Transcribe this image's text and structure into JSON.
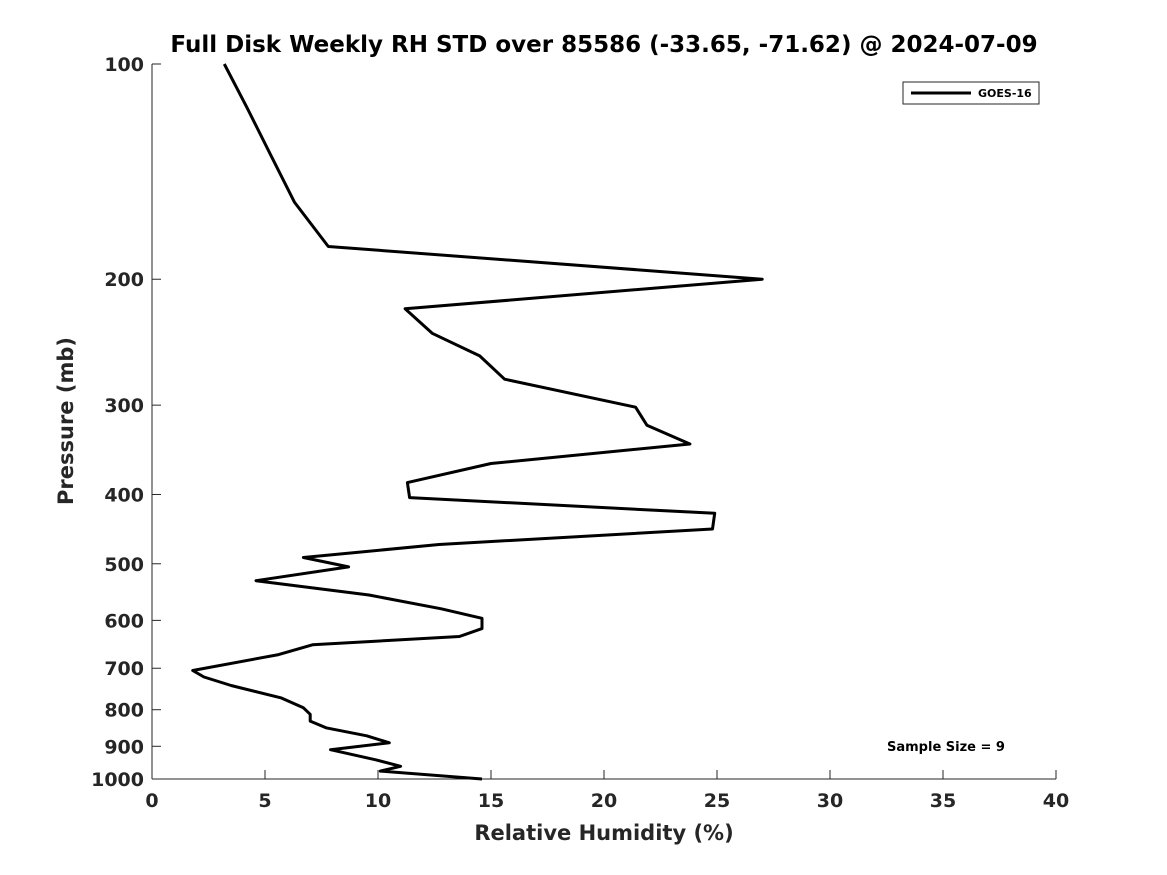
{
  "chart_data": {
    "type": "line",
    "title": "Full Disk Weekly RH STD over 85586 (-33.65, -71.62) @ 2024-07-09",
    "xlabel": "Relative Humidity (%)",
    "ylabel": "Pressure (mb)",
    "xlim": [
      0,
      40
    ],
    "ylim": [
      100,
      1000
    ],
    "yscale": "log",
    "yreversed": true,
    "grid": false,
    "legend_position": "top-right",
    "xticks": [
      0,
      5,
      10,
      15,
      20,
      25,
      30,
      35,
      40
    ],
    "yticks": [
      100,
      200,
      300,
      400,
      500,
      600,
      700,
      800,
      900,
      1000
    ],
    "annotation": "Sample Size = 9",
    "series": [
      {
        "name": "GOES-16",
        "color": "#000000",
        "points": [
          [
            3.2,
            100
          ],
          [
            4.2,
            115
          ],
          [
            5.3,
            135
          ],
          [
            6.3,
            156
          ],
          [
            7.8,
            180
          ],
          [
            27.0,
            200
          ],
          [
            11.2,
            220
          ],
          [
            12.4,
            238
          ],
          [
            14.5,
            256
          ],
          [
            15.6,
            276
          ],
          [
            21.4,
            302
          ],
          [
            21.9,
            320
          ],
          [
            23.8,
            340
          ],
          [
            15.0,
            362
          ],
          [
            11.3,
            385
          ],
          [
            11.4,
            404
          ],
          [
            24.9,
            425
          ],
          [
            24.8,
            447
          ],
          [
            12.7,
            470
          ],
          [
            6.7,
            490
          ],
          [
            8.7,
            505
          ],
          [
            4.6,
            528
          ],
          [
            9.6,
            553
          ],
          [
            12.8,
            578
          ],
          [
            14.6,
            596
          ],
          [
            14.6,
            616
          ],
          [
            13.6,
            632
          ],
          [
            7.1,
            649
          ],
          [
            5.6,
            670
          ],
          [
            1.8,
            705
          ],
          [
            2.3,
            720
          ],
          [
            3.5,
            740
          ],
          [
            5.7,
            770
          ],
          [
            6.7,
            795
          ],
          [
            7.0,
            812
          ],
          [
            7.0,
            830
          ],
          [
            7.7,
            848
          ],
          [
            9.5,
            870
          ],
          [
            10.5,
            890
          ],
          [
            7.9,
            910
          ],
          [
            9.9,
            940
          ],
          [
            11.0,
            960
          ],
          [
            10.1,
            975
          ],
          [
            14.6,
            1000
          ]
        ]
      }
    ]
  }
}
